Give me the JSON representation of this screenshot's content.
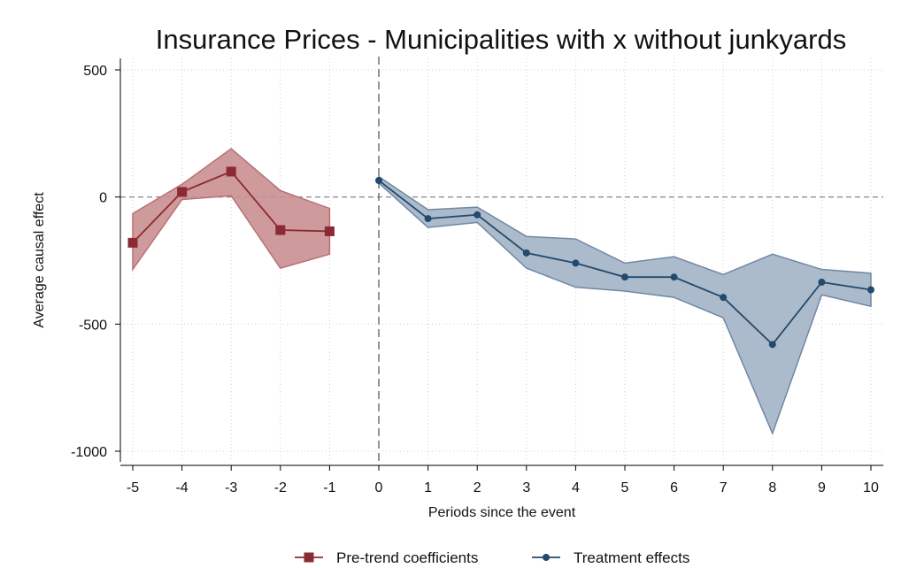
{
  "chart_data": {
    "type": "line",
    "title": "Insurance Prices - Municipalities with x without junkyards",
    "xlabel": "Periods since the event",
    "ylabel": "Average causal effect",
    "xlim": [
      -5,
      10
    ],
    "ylim": [
      -1000,
      500
    ],
    "x_ticks": [
      -5,
      -4,
      -3,
      -2,
      -1,
      0,
      1,
      2,
      3,
      4,
      5,
      6,
      7,
      8,
      9,
      10
    ],
    "y_ticks": [
      -1000,
      -500,
      0,
      500
    ],
    "grid": true,
    "reference_lines": {
      "x": 0,
      "y": 0
    },
    "legend_position": "bottom",
    "series": [
      {
        "name": "Pre-trend coefficients",
        "color": "#8b2a32",
        "band_fill": "#c98f91",
        "band_stroke": "#b97075",
        "marker": "square",
        "x": [
          -5,
          -4,
          -3,
          -2,
          -1
        ],
        "values": [
          -180,
          20,
          100,
          -130,
          -135
        ],
        "ci_lower": [
          -285,
          -10,
          5,
          -280,
          -225
        ],
        "ci_upper": [
          -65,
          50,
          190,
          25,
          -45
        ]
      },
      {
        "name": "Treatment effects",
        "color": "#234a6e",
        "band_fill": "#a3b4c6",
        "band_stroke": "#6f88a3",
        "marker": "circle",
        "x": [
          0,
          1,
          2,
          3,
          4,
          5,
          6,
          7,
          8,
          9,
          10
        ],
        "values": [
          65,
          -85,
          -70,
          -220,
          -260,
          -315,
          -315,
          -395,
          -580,
          -335,
          -365
        ],
        "ci_lower": [
          55,
          -120,
          -100,
          -280,
          -355,
          -370,
          -395,
          -475,
          -930,
          -385,
          -430
        ],
        "ci_upper": [
          80,
          -50,
          -40,
          -155,
          -165,
          -260,
          -235,
          -305,
          -225,
          -285,
          -300
        ]
      }
    ]
  }
}
